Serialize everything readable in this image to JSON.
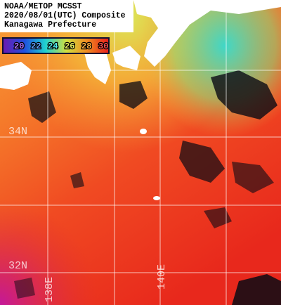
{
  "header": {
    "lines": [
      "NOAA/METOP MCSST",
      "2020/08/01(UTC) Composite",
      "Kanagawa Prefecture"
    ]
  },
  "colorbar": {
    "labels": [
      20,
      22,
      24,
      26,
      28,
      30
    ]
  },
  "grid": {
    "lat_labels": [
      "34N",
      "32N"
    ],
    "lon_labels": [
      "138E",
      "140E"
    ]
  }
}
